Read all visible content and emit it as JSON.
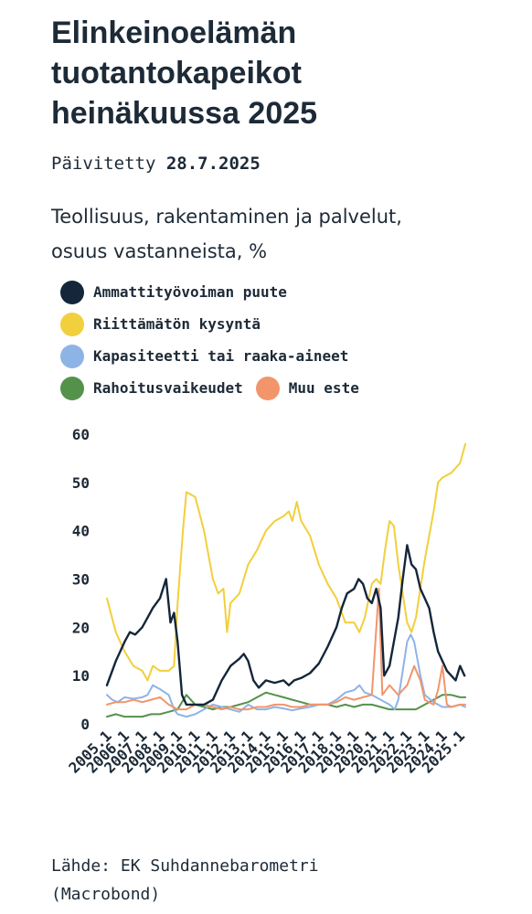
{
  "title_lines": [
    "Elinkeinoelämän",
    "tuotantokapeikot",
    "heinäkuussa 2025"
  ],
  "updated_label": "Päivitetty",
  "updated_date": "28.7.2025",
  "subtitle_lines": [
    "Teollisuus, rakentaminen ja palvelut,",
    "osuus vastanneista, %"
  ],
  "source_lines": [
    "Lähde: EK Suhdannebarometri",
    "(Macrobond)"
  ],
  "colors": {
    "ammattityovoima": "#14263a",
    "kysynta": "#f2cf3c",
    "kapasiteetti": "#8eb4e6",
    "rahoitus": "#54924c",
    "muu": "#f2956a"
  },
  "chart_data": {
    "type": "line",
    "x_ticks": [
      "2005.1",
      "2006.1",
      "2007.1",
      "2008.1",
      "2009.1",
      "2010.1",
      "2011.1",
      "2012.1",
      "2013.1",
      "2014.1",
      "2015.1",
      "2016.1",
      "2017.1",
      "2018.1",
      "2019.1",
      "2020.1",
      "2021.1",
      "2022.1",
      "2023.1",
      "2024.1",
      "2025.1"
    ],
    "ylim": [
      0,
      60
    ],
    "y_ticks": [
      0,
      10,
      20,
      30,
      40,
      50,
      60
    ],
    "xlabel": "",
    "ylabel": "",
    "grid": false,
    "legend_position": "top",
    "series": [
      {
        "key": "ammattityovoima",
        "name": "Ammattityövoiman puute",
        "points": [
          [
            2005.0,
            8
          ],
          [
            2005.5,
            13
          ],
          [
            2006.0,
            17
          ],
          [
            2006.3,
            19
          ],
          [
            2006.6,
            18.5
          ],
          [
            2007.0,
            20
          ],
          [
            2007.3,
            22
          ],
          [
            2007.6,
            24
          ],
          [
            2008.0,
            26
          ],
          [
            2008.35,
            30
          ],
          [
            2008.6,
            21
          ],
          [
            2008.8,
            23
          ],
          [
            2009.0,
            17
          ],
          [
            2009.25,
            6
          ],
          [
            2009.5,
            4
          ],
          [
            2010.0,
            4
          ],
          [
            2010.5,
            4
          ],
          [
            2011.0,
            5
          ],
          [
            2011.5,
            9
          ],
          [
            2012.0,
            12
          ],
          [
            2012.5,
            13.5
          ],
          [
            2012.75,
            14.5
          ],
          [
            2013.0,
            13
          ],
          [
            2013.3,
            9
          ],
          [
            2013.6,
            7.5
          ],
          [
            2014.0,
            9
          ],
          [
            2014.5,
            8.5
          ],
          [
            2015.0,
            9
          ],
          [
            2015.3,
            8
          ],
          [
            2015.6,
            9
          ],
          [
            2016.0,
            9.5
          ],
          [
            2016.5,
            10.5
          ],
          [
            2017.0,
            12.5
          ],
          [
            2017.5,
            16
          ],
          [
            2018.0,
            20
          ],
          [
            2018.3,
            24
          ],
          [
            2018.6,
            27
          ],
          [
            2019.0,
            28
          ],
          [
            2019.25,
            30
          ],
          [
            2019.5,
            29
          ],
          [
            2019.75,
            26
          ],
          [
            2020.0,
            25
          ],
          [
            2020.25,
            28
          ],
          [
            2020.5,
            24
          ],
          [
            2020.7,
            10
          ],
          [
            2021.0,
            12
          ],
          [
            2021.25,
            17
          ],
          [
            2021.5,
            22
          ],
          [
            2021.75,
            30
          ],
          [
            2022.0,
            37
          ],
          [
            2022.25,
            33
          ],
          [
            2022.5,
            32
          ],
          [
            2022.75,
            28
          ],
          [
            2023.0,
            26
          ],
          [
            2023.25,
            24
          ],
          [
            2023.5,
            19
          ],
          [
            2023.75,
            15
          ],
          [
            2024.0,
            13
          ],
          [
            2024.25,
            11
          ],
          [
            2024.5,
            10
          ],
          [
            2024.75,
            9
          ],
          [
            2025.0,
            12
          ],
          [
            2025.25,
            10
          ]
        ]
      },
      {
        "key": "kysynta",
        "name": "Riittämätön kysyntä",
        "points": [
          [
            2005.0,
            26
          ],
          [
            2005.5,
            19
          ],
          [
            2006.0,
            15
          ],
          [
            2006.5,
            12
          ],
          [
            2007.0,
            11
          ],
          [
            2007.3,
            9
          ],
          [
            2007.6,
            12
          ],
          [
            2008.0,
            11
          ],
          [
            2008.5,
            11
          ],
          [
            2008.8,
            12
          ],
          [
            2009.0,
            25
          ],
          [
            2009.3,
            40
          ],
          [
            2009.5,
            48
          ],
          [
            2010.0,
            47
          ],
          [
            2010.5,
            40
          ],
          [
            2011.0,
            30
          ],
          [
            2011.3,
            27
          ],
          [
            2011.6,
            28
          ],
          [
            2011.8,
            19
          ],
          [
            2012.0,
            25
          ],
          [
            2012.5,
            27
          ],
          [
            2013.0,
            33
          ],
          [
            2013.5,
            36
          ],
          [
            2014.0,
            40
          ],
          [
            2014.5,
            42
          ],
          [
            2015.0,
            43
          ],
          [
            2015.3,
            44
          ],
          [
            2015.5,
            42
          ],
          [
            2015.75,
            46
          ],
          [
            2016.0,
            42
          ],
          [
            2016.5,
            39
          ],
          [
            2017.0,
            33
          ],
          [
            2017.5,
            29
          ],
          [
            2018.0,
            26
          ],
          [
            2018.5,
            21
          ],
          [
            2019.0,
            21
          ],
          [
            2019.3,
            19
          ],
          [
            2019.6,
            22
          ],
          [
            2020.0,
            29
          ],
          [
            2020.25,
            30
          ],
          [
            2020.5,
            29
          ],
          [
            2020.75,
            36
          ],
          [
            2021.0,
            42
          ],
          [
            2021.25,
            41
          ],
          [
            2021.5,
            33
          ],
          [
            2022.0,
            21
          ],
          [
            2022.25,
            19
          ],
          [
            2022.5,
            22
          ],
          [
            2023.0,
            34
          ],
          [
            2023.5,
            44
          ],
          [
            2023.75,
            50
          ],
          [
            2024.0,
            51
          ],
          [
            2024.5,
            52
          ],
          [
            2025.0,
            54
          ],
          [
            2025.3,
            58
          ]
        ]
      },
      {
        "key": "kapasiteetti",
        "name": "Kapasiteetti tai raaka-aineet",
        "points": [
          [
            2005.0,
            6
          ],
          [
            2005.3,
            5
          ],
          [
            2005.6,
            4.5
          ],
          [
            2006.0,
            5.5
          ],
          [
            2006.5,
            5.2
          ],
          [
            2007.0,
            5.5
          ],
          [
            2007.3,
            6
          ],
          [
            2007.6,
            8
          ],
          [
            2008.0,
            7.2
          ],
          [
            2008.5,
            6
          ],
          [
            2008.8,
            3
          ],
          [
            2009.0,
            2
          ],
          [
            2009.5,
            1.5
          ],
          [
            2010.0,
            2
          ],
          [
            2010.5,
            3
          ],
          [
            2011.0,
            4
          ],
          [
            2011.5,
            3.5
          ],
          [
            2012.0,
            3
          ],
          [
            2012.5,
            2.5
          ],
          [
            2013.0,
            4
          ],
          [
            2013.5,
            3
          ],
          [
            2014.0,
            3
          ],
          [
            2014.5,
            3.5
          ],
          [
            2015.0,
            3.2
          ],
          [
            2015.5,
            2.8
          ],
          [
            2016.0,
            3.2
          ],
          [
            2016.5,
            3.5
          ],
          [
            2017.0,
            4
          ],
          [
            2017.5,
            4
          ],
          [
            2018.0,
            5
          ],
          [
            2018.5,
            6.5
          ],
          [
            2019.0,
            7
          ],
          [
            2019.3,
            8
          ],
          [
            2019.6,
            6.5
          ],
          [
            2020.0,
            6
          ],
          [
            2020.5,
            5
          ],
          [
            2021.0,
            4
          ],
          [
            2021.3,
            3
          ],
          [
            2021.5,
            5
          ],
          [
            2021.75,
            11
          ],
          [
            2022.0,
            17
          ],
          [
            2022.2,
            18.5
          ],
          [
            2022.4,
            17
          ],
          [
            2022.75,
            10
          ],
          [
            2023.0,
            6
          ],
          [
            2023.5,
            4.5
          ],
          [
            2024.0,
            3.5
          ],
          [
            2024.5,
            3.5
          ],
          [
            2025.0,
            4
          ],
          [
            2025.3,
            3.5
          ]
        ]
      },
      {
        "key": "rahoitus",
        "name": "Rahoitusvaikeudet",
        "points": [
          [
            2005.0,
            1.5
          ],
          [
            2005.5,
            2
          ],
          [
            2006.0,
            1.5
          ],
          [
            2006.5,
            1.5
          ],
          [
            2007.0,
            1.5
          ],
          [
            2007.5,
            2
          ],
          [
            2008.0,
            2
          ],
          [
            2008.5,
            2.5
          ],
          [
            2009.0,
            3
          ],
          [
            2009.5,
            6
          ],
          [
            2010.0,
            4
          ],
          [
            2010.5,
            3.5
          ],
          [
            2011.0,
            3
          ],
          [
            2011.5,
            3.5
          ],
          [
            2012.0,
            3.5
          ],
          [
            2012.5,
            4
          ],
          [
            2013.0,
            4.5
          ],
          [
            2013.5,
            5.5
          ],
          [
            2014.0,
            6.5
          ],
          [
            2014.5,
            6
          ],
          [
            2015.0,
            5.5
          ],
          [
            2015.5,
            5
          ],
          [
            2016.0,
            4.5
          ],
          [
            2016.5,
            4
          ],
          [
            2017.0,
            4
          ],
          [
            2017.5,
            4
          ],
          [
            2018.0,
            3.5
          ],
          [
            2018.5,
            4
          ],
          [
            2019.0,
            3.5
          ],
          [
            2019.5,
            4
          ],
          [
            2020.0,
            4
          ],
          [
            2020.5,
            3.5
          ],
          [
            2021.0,
            3
          ],
          [
            2021.5,
            3
          ],
          [
            2022.0,
            3
          ],
          [
            2022.5,
            3
          ],
          [
            2023.0,
            4
          ],
          [
            2023.5,
            5
          ],
          [
            2024.0,
            6
          ],
          [
            2024.5,
            6
          ],
          [
            2025.0,
            5.5
          ],
          [
            2025.3,
            5.5
          ]
        ]
      },
      {
        "key": "muu",
        "name": "Muu este",
        "points": [
          [
            2005.0,
            4
          ],
          [
            2005.5,
            4.5
          ],
          [
            2006.0,
            4.5
          ],
          [
            2006.5,
            5
          ],
          [
            2007.0,
            4.5
          ],
          [
            2007.5,
            5
          ],
          [
            2008.0,
            5.5
          ],
          [
            2008.5,
            4
          ],
          [
            2009.0,
            3
          ],
          [
            2009.5,
            3
          ],
          [
            2010.0,
            4
          ],
          [
            2010.5,
            4
          ],
          [
            2011.0,
            3.5
          ],
          [
            2011.5,
            3
          ],
          [
            2012.0,
            3.5
          ],
          [
            2012.5,
            3
          ],
          [
            2013.0,
            3
          ],
          [
            2013.5,
            3.5
          ],
          [
            2014.0,
            3.5
          ],
          [
            2014.5,
            4
          ],
          [
            2015.0,
            4
          ],
          [
            2015.5,
            3.5
          ],
          [
            2016.0,
            3.5
          ],
          [
            2016.5,
            4
          ],
          [
            2017.0,
            4
          ],
          [
            2017.5,
            4
          ],
          [
            2018.0,
            4.5
          ],
          [
            2018.5,
            5.5
          ],
          [
            2019.0,
            5
          ],
          [
            2019.5,
            5.5
          ],
          [
            2020.0,
            6
          ],
          [
            2020.4,
            28
          ],
          [
            2020.6,
            6
          ],
          [
            2021.0,
            8
          ],
          [
            2021.5,
            6
          ],
          [
            2022.0,
            8
          ],
          [
            2022.4,
            12
          ],
          [
            2022.75,
            9
          ],
          [
            2023.0,
            5
          ],
          [
            2023.5,
            4
          ],
          [
            2023.75,
            7
          ],
          [
            2024.0,
            12
          ],
          [
            2024.25,
            4
          ],
          [
            2024.5,
            3.5
          ],
          [
            2025.0,
            4
          ],
          [
            2025.3,
            4
          ]
        ]
      }
    ]
  }
}
